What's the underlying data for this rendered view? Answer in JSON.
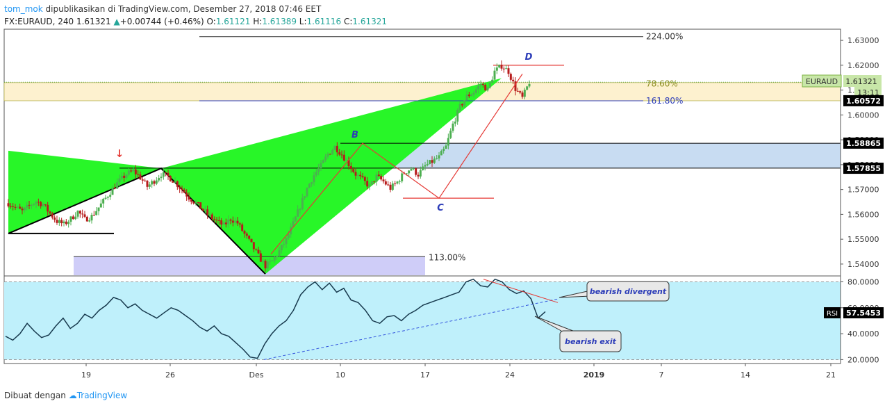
{
  "header": {
    "author": "tom_mok",
    "published": "dipublikasikan di TradingView.com, Desember 27, 2018 07:46 EET",
    "symbol": "FX:EURAUD, 240",
    "last": "1.61321",
    "change": "+0.00744 (+0.46%)",
    "o_label": "O:",
    "o": "1.61121",
    "h_label": "H:",
    "h": "1.61389",
    "l_label": "L:",
    "l": "1.61116",
    "c_label": "C:",
    "c": "1.61321"
  },
  "footer": {
    "made_with": "Dibuat dengan",
    "brand": "TradingView"
  },
  "colors": {
    "harmonic_fill": "#1cf51c",
    "up_candle": "#4caf50",
    "down_candle": "#b71c1c",
    "fib_band": "#fdf1cf",
    "zone_band": "#c8dcf2",
    "lower_band": "#cfcdf8",
    "rsi_bg": "#bff0fb",
    "red_line": "#e53935",
    "blue_line": "#3344cc"
  },
  "chart_data": {
    "type": "candlestick",
    "symbol": "FX:EURAUD",
    "timeframe": "240",
    "price_axis": {
      "range": [
        1.5355,
        1.6345
      ],
      "ticks": [
        "1.63000",
        "1.62000",
        "1.61000",
        "1.60000",
        "1.59000",
        "1.58000",
        "1.57000",
        "1.56000",
        "1.55000",
        "1.54000"
      ]
    },
    "time_axis": {
      "ticks": [
        "19",
        "26",
        "Des",
        "10",
        "17",
        "24",
        "2019",
        "7",
        "14",
        "21"
      ]
    },
    "price_labels": [
      {
        "label": "EURAUD",
        "value": "1.61321",
        "time": "13:11"
      },
      {
        "value": "1.60572"
      },
      {
        "value": "1.58865"
      },
      {
        "value": "1.57855"
      }
    ],
    "fib_labels": [
      {
        "text": "224.00%",
        "price": 1.6315
      },
      {
        "text": "78.60%",
        "price": 1.6125
      },
      {
        "text": "161.80%",
        "price": 1.6057
      },
      {
        "text": "113.00%",
        "price": 1.5427
      }
    ],
    "pattern_points": [
      {
        "label": "B",
        "price": 1.5886
      },
      {
        "label": "C",
        "price": 1.5665
      },
      {
        "label": "D",
        "price": 1.6198
      }
    ],
    "close_path": [
      [
        0,
        1.5645
      ],
      [
        1,
        1.5628
      ],
      [
        2,
        1.5612
      ],
      [
        3,
        1.5635
      ],
      [
        4,
        1.5652
      ],
      [
        5,
        1.564
      ],
      [
        6,
        1.5603
      ],
      [
        7,
        1.5572
      ],
      [
        8,
        1.556
      ],
      [
        9,
        1.5582
      ],
      [
        10,
        1.5611
      ],
      [
        11,
        1.558
      ],
      [
        12,
        1.5592
      ],
      [
        13,
        1.5628
      ],
      [
        14,
        1.5665
      ],
      [
        15,
        1.5702
      ],
      [
        16,
        1.5735
      ],
      [
        17,
        1.5762
      ],
      [
        18,
        1.5775
      ],
      [
        19,
        1.5748
      ],
      [
        20,
        1.5712
      ],
      [
        21,
        1.5735
      ],
      [
        22,
        1.5762
      ],
      [
        23,
        1.5752
      ],
      [
        24,
        1.573
      ],
      [
        25,
        1.57
      ],
      [
        26,
        1.5668
      ],
      [
        27,
        1.5645
      ],
      [
        28,
        1.5618
      ],
      [
        29,
        1.5592
      ],
      [
        30,
        1.5572
      ],
      [
        31,
        1.5555
      ],
      [
        32,
        1.5582
      ],
      [
        33,
        1.5565
      ],
      [
        34,
        1.552
      ],
      [
        35,
        1.5478
      ],
      [
        36,
        1.5432
      ],
      [
        37,
        1.5392
      ],
      [
        38,
        1.5412
      ],
      [
        39,
        1.5452
      ],
      [
        40,
        1.5498
      ],
      [
        41,
        1.5562
      ],
      [
        42,
        1.5632
      ],
      [
        43,
        1.5705
      ],
      [
        44,
        1.5758
      ],
      [
        45,
        1.5795
      ],
      [
        46,
        1.5842
      ],
      [
        47,
        1.5872
      ],
      [
        48,
        1.5842
      ],
      [
        49,
        1.5802
      ],
      [
        50,
        1.5762
      ],
      [
        51,
        1.5738
      ],
      [
        52,
        1.5712
      ],
      [
        53,
        1.5752
      ],
      [
        54,
        1.5732
      ],
      [
        55,
        1.5705
      ],
      [
        56,
        1.573
      ],
      [
        57,
        1.5768
      ],
      [
        58,
        1.5785
      ],
      [
        59,
        1.576
      ],
      [
        60,
        1.5795
      ],
      [
        61,
        1.5812
      ],
      [
        62,
        1.583
      ],
      [
        63,
        1.5872
      ],
      [
        64,
        1.5962
      ],
      [
        65,
        1.6032
      ],
      [
        66,
        1.6075
      ],
      [
        67,
        1.6092
      ],
      [
        68,
        1.6125
      ],
      [
        69,
        1.6102
      ],
      [
        70,
        1.6175
      ],
      [
        71,
        1.6198
      ],
      [
        72,
        1.6175
      ],
      [
        73,
        1.6105
      ],
      [
        74,
        1.6068
      ],
      [
        75,
        1.6132
      ]
    ],
    "harmonic_triangles": [
      {
        "points": [
          [
            0,
            1.5856
          ],
          [
            0,
            1.5523
          ],
          [
            22,
            1.5785
          ]
        ]
      },
      {
        "points": [
          [
            22,
            1.5785
          ],
          [
            71,
            1.6148
          ],
          [
            37,
            1.536
          ]
        ]
      }
    ],
    "rsi": {
      "label": "RSI",
      "value": "57.5453",
      "range": [
        17,
        84
      ],
      "ticks": [
        "80.0000",
        "60.0000",
        "40.0000",
        "20.0000"
      ],
      "bands": [
        80,
        20
      ],
      "values": [
        38,
        35,
        40,
        48,
        42,
        37,
        39,
        46,
        52,
        44,
        48,
        55,
        52,
        58,
        62,
        68,
        66,
        60,
        63,
        58,
        55,
        52,
        56,
        60,
        58,
        54,
        50,
        45,
        42,
        46,
        40,
        38,
        33,
        28,
        22,
        21,
        32,
        40,
        46,
        50,
        58,
        70,
        76,
        80,
        74,
        79,
        72,
        75,
        66,
        64,
        58,
        50,
        48,
        53,
        54,
        50,
        55,
        58,
        62,
        64,
        66,
        68,
        70,
        72,
        80,
        82,
        77,
        76,
        82,
        80,
        74,
        71,
        73,
        67,
        52,
        57
      ],
      "annotations": [
        "bearish divergent",
        "bearish exit"
      ]
    }
  }
}
